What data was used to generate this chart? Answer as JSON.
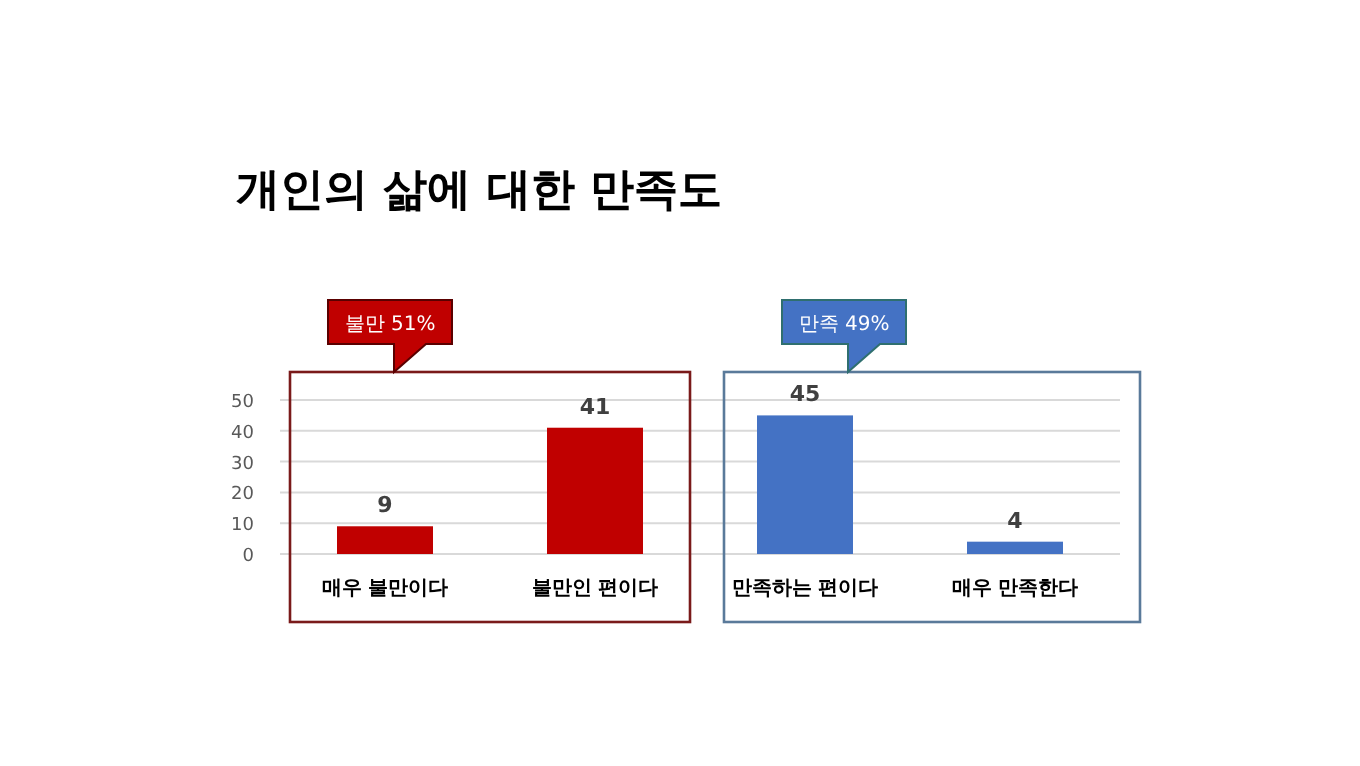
{
  "chart_data": {
    "type": "bar",
    "title": "개인의 삶에 대한 만족도",
    "categories": [
      "매우 불만이다",
      "불만인 편이다",
      "만족하는 편이다",
      "매우 만족한다"
    ],
    "values": [
      9,
      41,
      45,
      4
    ],
    "colors": [
      "#c00000",
      "#c00000",
      "#4472c4",
      "#4472c4"
    ],
    "data_labels": true,
    "ylim": [
      0,
      50
    ],
    "yticks": [
      0,
      10,
      20,
      30,
      40,
      50
    ],
    "grid": "y",
    "annotations": [
      "불만 51%",
      "만족 49%"
    ]
  }
}
